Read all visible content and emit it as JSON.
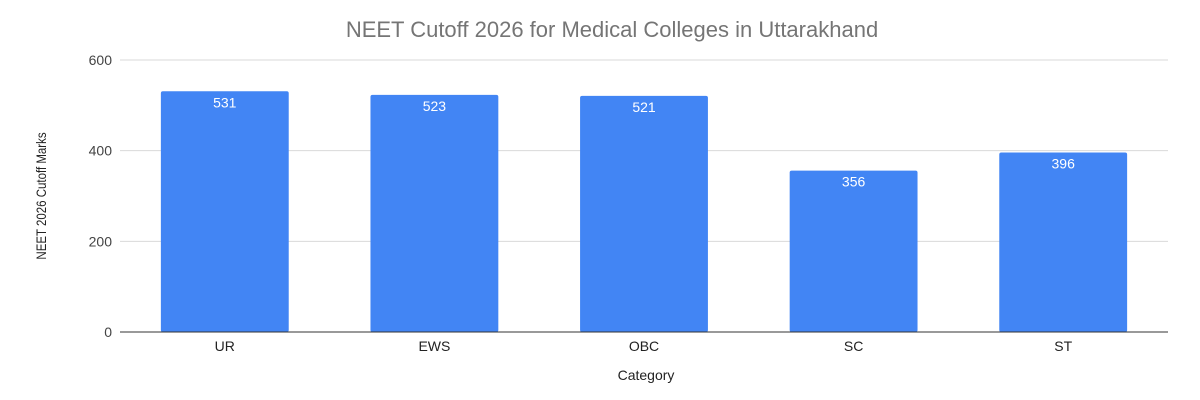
{
  "chart_data": {
    "type": "bar",
    "title": "NEET Cutoff 2026 for Medical Colleges in Uttarakhand",
    "xlabel": "Category",
    "ylabel": "NEET 2026 Cutoff Marks",
    "categories": [
      "UR",
      "EWS",
      "OBC",
      "SC",
      "ST"
    ],
    "values": [
      531,
      523,
      521,
      356,
      396
    ],
    "ylim": [
      0,
      600
    ],
    "yticks": [
      0,
      200,
      400,
      600
    ],
    "grid": true,
    "legend": "none",
    "bar_color": "#4285f4"
  }
}
